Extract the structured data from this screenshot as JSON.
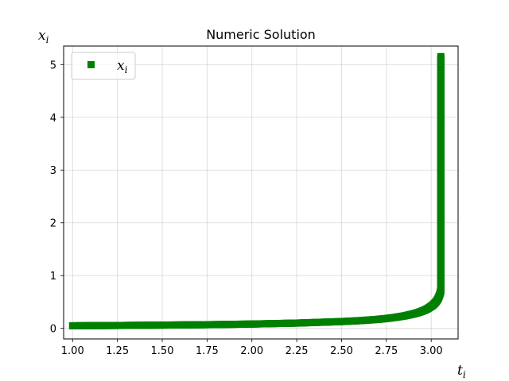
{
  "chart_data": {
    "type": "scatter",
    "title": "Numeric Solution",
    "xlabel": {
      "base": "t",
      "sub": "i"
    },
    "ylabel": {
      "base": "x",
      "sub": "i"
    },
    "xlim": [
      0.95,
      3.15
    ],
    "ylim": [
      -0.2,
      5.35
    ],
    "xticks": [
      "1.00",
      "1.25",
      "1.50",
      "1.75",
      "2.00",
      "2.25",
      "2.50",
      "2.75",
      "3.00"
    ],
    "yticks": [
      "0",
      "1",
      "2",
      "3",
      "4",
      "5"
    ],
    "grid": true,
    "legend_position": "top-left",
    "series": [
      {
        "name": {
          "base": "x",
          "sub": "i"
        },
        "marker": "square",
        "color": "#008000",
        "blowup_t": 3.0538,
        "x": [
          1.0,
          1.25,
          1.5,
          1.75,
          2.0,
          2.25,
          2.5,
          2.6,
          2.7,
          2.75,
          2.8,
          2.85,
          2.9,
          2.93,
          2.96,
          2.98,
          3.0,
          3.01,
          3.02,
          3.03,
          3.035,
          3.04,
          3.045,
          3.048,
          3.05,
          3.051,
          3.052
        ],
        "y": [
          0.049,
          0.055,
          0.062,
          0.07,
          0.082,
          0.1,
          0.129,
          0.146,
          0.17,
          0.187,
          0.209,
          0.236,
          0.273,
          0.302,
          0.34,
          0.374,
          0.417,
          0.444,
          0.477,
          0.518,
          0.544,
          0.575,
          0.615,
          0.645,
          0.669,
          0.683,
          0.699
        ],
        "vertical_run": {
          "t": 3.0536,
          "y_from": 0.7,
          "y_to": 5.15
        }
      }
    ]
  }
}
